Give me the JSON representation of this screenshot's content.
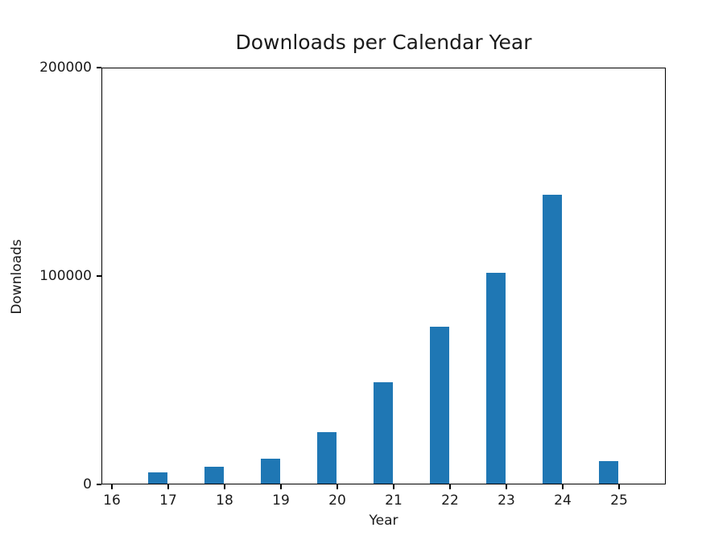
{
  "chart_data": {
    "type": "bar",
    "title": "Downloads per Calendar Year",
    "xlabel": "Year",
    "ylabel": "Downloads",
    "bar_color": "#1f77b4",
    "background_color": "#ffffff",
    "grid": false,
    "legend": null,
    "ylim": [
      0,
      200000
    ],
    "xlim_years": [
      15.8,
      25.8
    ],
    "x_ticks": {
      "years": [
        16,
        17,
        18,
        19,
        20,
        21,
        22,
        23,
        24,
        25
      ],
      "labels": [
        "16",
        "17",
        "18",
        "19",
        "20",
        "21",
        "22",
        "23",
        "24",
        "25"
      ]
    },
    "y_ticks": {
      "values": [
        0,
        100000,
        200000
      ],
      "labels": [
        "0",
        "100000",
        "200000"
      ]
    },
    "series": [
      {
        "name": "Downloads",
        "categories": [
          17,
          18,
          19,
          20,
          21,
          22,
          23,
          24,
          25
        ],
        "values": [
          5800,
          8500,
          12400,
          25000,
          49000,
          75500,
          101500,
          139000,
          11300
        ]
      }
    ]
  }
}
